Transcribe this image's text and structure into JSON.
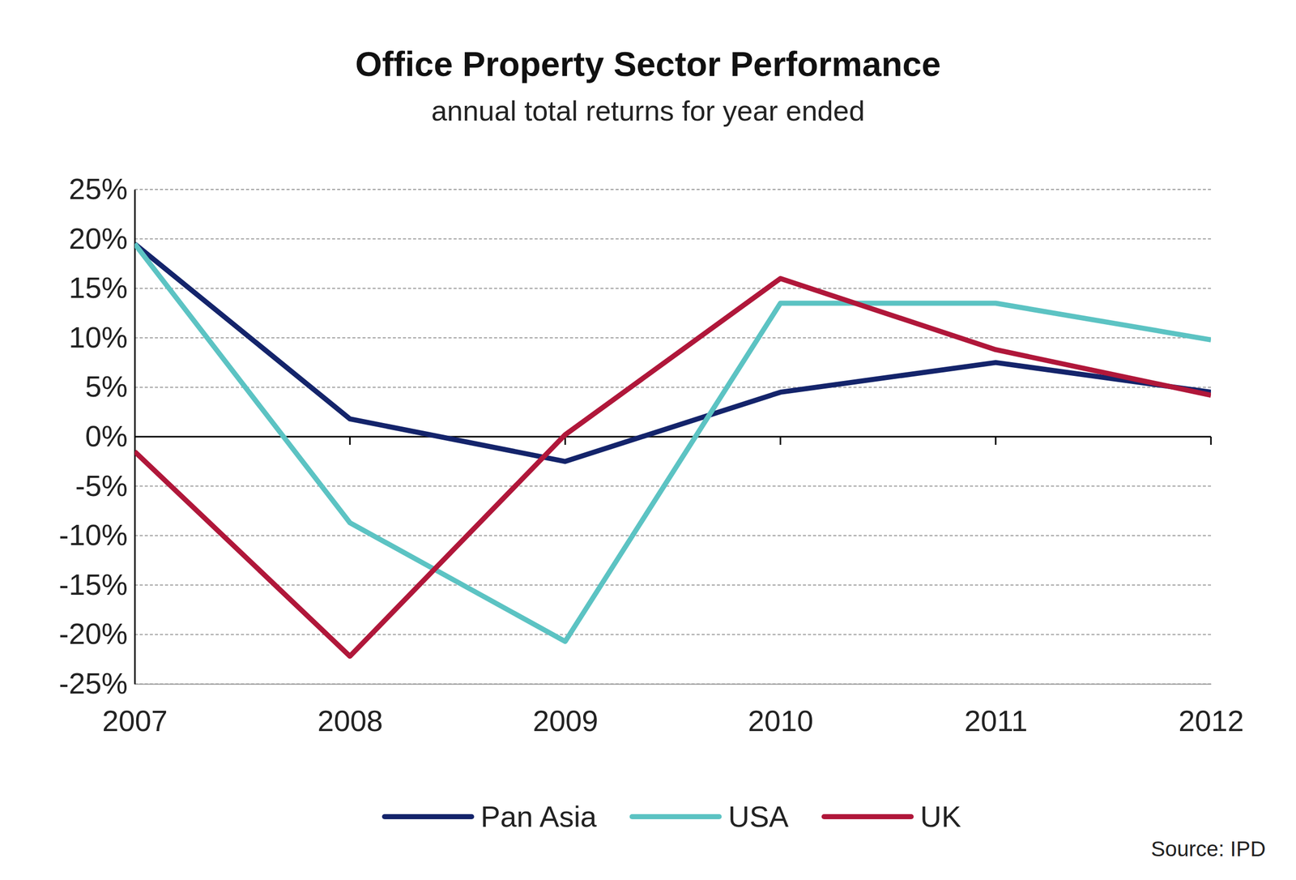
{
  "chart_data": {
    "type": "line",
    "title": "Office Property Sector Performance",
    "subtitle": "annual total returns for year ended",
    "source": "Source: IPD",
    "categories": [
      "2007",
      "2008",
      "2009",
      "2010",
      "2011",
      "2012"
    ],
    "series": [
      {
        "name": "Pan Asia",
        "color": "#14246b",
        "values": [
          19.5,
          1.8,
          -2.5,
          4.5,
          7.5,
          4.5
        ]
      },
      {
        "name": "USA",
        "color": "#5cc3c3",
        "values": [
          19.5,
          -8.7,
          -20.7,
          13.5,
          13.5,
          9.8
        ]
      },
      {
        "name": "UK",
        "color": "#b0173a",
        "values": [
          -1.5,
          -22.2,
          0.2,
          16.0,
          8.8,
          4.2
        ]
      }
    ],
    "ylim": [
      -25,
      25
    ],
    "yticks": [
      {
        "value": -25,
        "label": "-25%"
      },
      {
        "value": -20,
        "label": "-20%"
      },
      {
        "value": -15,
        "label": "-15%"
      },
      {
        "value": -10,
        "label": "-10%"
      },
      {
        "value": -5,
        "label": "-5%"
      },
      {
        "value": 0,
        "label": "0%"
      },
      {
        "value": 5,
        "label": "5%"
      },
      {
        "value": 10,
        "label": "10%"
      },
      {
        "value": 15,
        "label": "15%"
      },
      {
        "value": 20,
        "label": "20%"
      },
      {
        "value": 25,
        "label": "25%"
      }
    ],
    "grid": true,
    "legend": "bottom"
  }
}
